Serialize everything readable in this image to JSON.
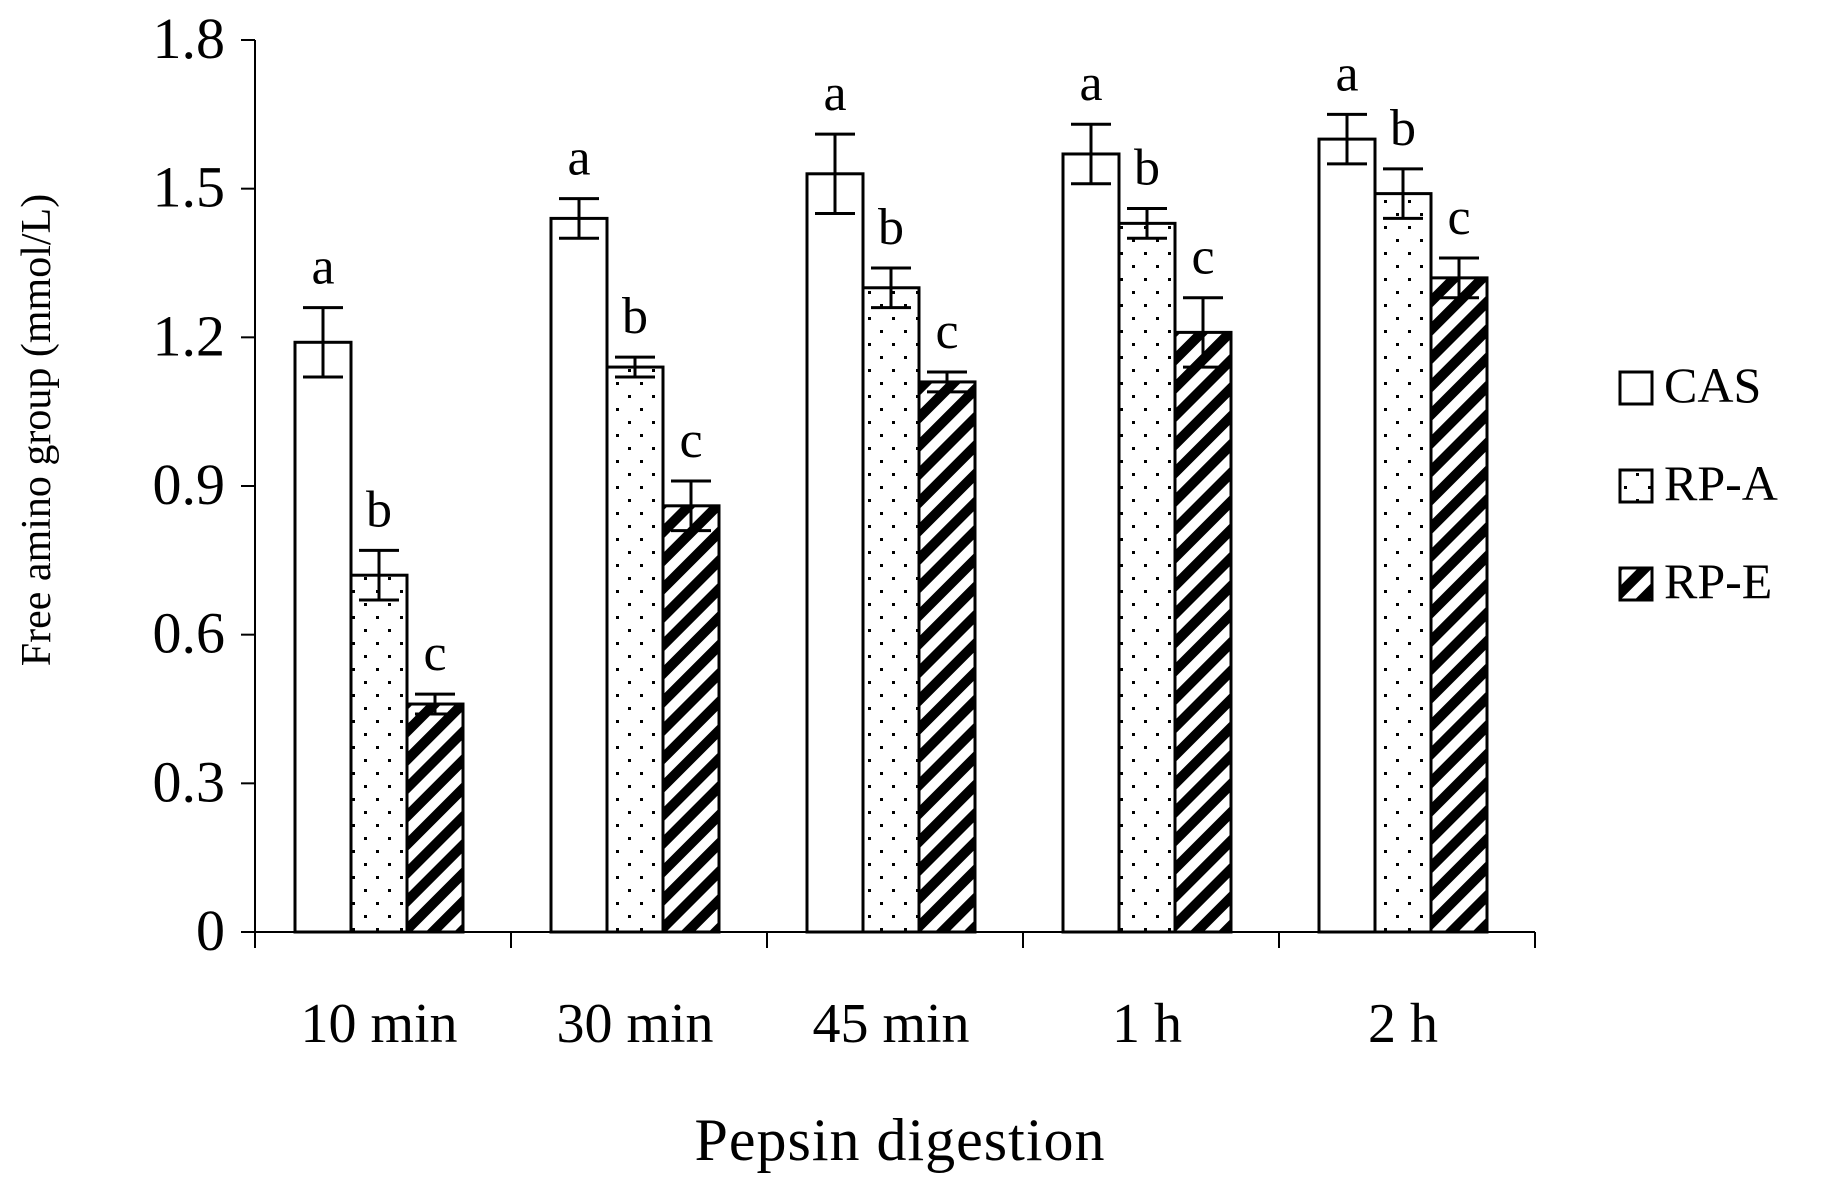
{
  "chart_data": {
    "type": "bar",
    "title": "",
    "xlabel": "Pepsin digestion",
    "ylabel": "Free amino group (mmol/L)",
    "ylim": [
      0,
      1.8
    ],
    "yticks": [
      "0",
      "0.3",
      "0.6",
      "0.9",
      "1.2",
      "1.5",
      "1.8"
    ],
    "categories": [
      "10 min",
      "30 min",
      "45 min",
      "1 h",
      "2 h"
    ],
    "legend_position": "right",
    "series": [
      {
        "name": "CAS",
        "pattern": "blank",
        "values": [
          1.19,
          1.44,
          1.53,
          1.57,
          1.6
        ],
        "errors": [
          0.07,
          0.04,
          0.08,
          0.06,
          0.05
        ],
        "letters": [
          "a",
          "a",
          "a",
          "a",
          "a"
        ]
      },
      {
        "name": "RP-A",
        "pattern": "dots",
        "values": [
          0.72,
          1.14,
          1.3,
          1.43,
          1.49
        ],
        "errors": [
          0.05,
          0.02,
          0.04,
          0.03,
          0.05
        ],
        "letters": [
          "b",
          "b",
          "b",
          "b",
          "b"
        ]
      },
      {
        "name": "RP-E",
        "pattern": "diagonal-stripes",
        "values": [
          0.46,
          0.86,
          1.11,
          1.21,
          1.32
        ],
        "errors": [
          0.02,
          0.05,
          0.02,
          0.07,
          0.04
        ],
        "letters": [
          "c",
          "c",
          "c",
          "c",
          "c"
        ]
      }
    ]
  },
  "colors": {
    "ink": "#000000",
    "background": "#ffffff"
  }
}
